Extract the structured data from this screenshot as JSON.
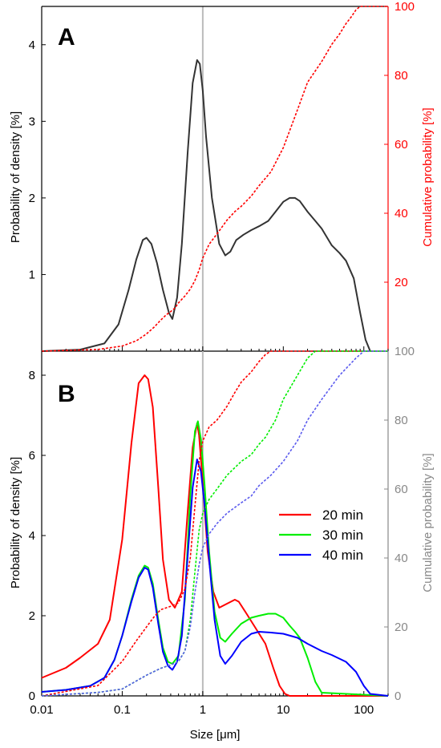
{
  "chart_data": [
    {
      "panel": "A",
      "type": "line",
      "xscale": "log",
      "xlim": [
        0.01,
        200
      ],
      "ylim": [
        0,
        4.5
      ],
      "y2lim": [
        0,
        100
      ],
      "ylabel": "Probability of density [%]",
      "y2label": "Cumulative probability [%]",
      "yticks": [
        1,
        2,
        3,
        4
      ],
      "y2ticks": [
        20,
        40,
        60,
        80,
        100
      ],
      "vline_x": 1,
      "colors": {
        "density": "#333333",
        "cumulative": "#ff0000",
        "right_axis": "#ff0000",
        "vline": "#bbbbbb"
      },
      "series": [
        {
          "kind": "density",
          "x": [
            0.01,
            0.03,
            0.06,
            0.09,
            0.12,
            0.15,
            0.18,
            0.2,
            0.23,
            0.27,
            0.32,
            0.38,
            0.42,
            0.48,
            0.55,
            0.65,
            0.75,
            0.85,
            0.92,
            1.0,
            1.1,
            1.3,
            1.6,
            1.9,
            2.2,
            2.6,
            3.2,
            4,
            5,
            6.5,
            8,
            10,
            12,
            14,
            16,
            20,
            25,
            30,
            40,
            50,
            60,
            75,
            90,
            105,
            120
          ],
          "y": [
            0.0,
            0.02,
            0.1,
            0.35,
            0.8,
            1.2,
            1.45,
            1.48,
            1.4,
            1.15,
            0.8,
            0.5,
            0.42,
            0.7,
            1.4,
            2.6,
            3.5,
            3.8,
            3.75,
            3.4,
            2.8,
            2.0,
            1.4,
            1.25,
            1.3,
            1.45,
            1.52,
            1.58,
            1.63,
            1.7,
            1.82,
            1.95,
            2.0,
            2.0,
            1.96,
            1.82,
            1.7,
            1.6,
            1.38,
            1.28,
            1.18,
            0.95,
            0.5,
            0.15,
            0.0
          ]
        },
        {
          "kind": "cumulative",
          "x": [
            0.01,
            0.05,
            0.1,
            0.15,
            0.2,
            0.25,
            0.3,
            0.35,
            0.4,
            0.45,
            0.5,
            0.6,
            0.7,
            0.8,
            0.9,
            1.0,
            1.2,
            1.5,
            2,
            2.5,
            3,
            4,
            5,
            7,
            10,
            15,
            20,
            30,
            40,
            50,
            60,
            70,
            80,
            90,
            100,
            200
          ],
          "y": [
            0,
            0.5,
            1.5,
            3,
            5,
            7,
            9,
            10.5,
            11.5,
            12.5,
            14,
            16,
            18,
            20.5,
            23.5,
            27,
            31,
            34,
            38,
            40.5,
            42,
            45,
            48,
            52,
            59,
            70,
            78,
            84,
            89,
            92,
            95,
            97,
            99,
            100,
            100,
            100
          ]
        }
      ]
    },
    {
      "panel": "B",
      "type": "line",
      "xscale": "log",
      "xlim": [
        0.01,
        200
      ],
      "ylim": [
        0,
        8.6
      ],
      "y2lim": [
        0,
        100
      ],
      "xlabel": "Size [μm]",
      "ylabel": "Probability of density [%]",
      "y2label": "Cumulative probability [%]",
      "xticks": [
        0.01,
        0.1,
        1,
        10,
        100
      ],
      "xticklabels": [
        "0.01",
        "0.1",
        "1",
        "10",
        "100"
      ],
      "yticks": [
        0,
        2,
        4,
        6,
        8
      ],
      "y2ticks": [
        0,
        20,
        40,
        60,
        80,
        100
      ],
      "vline_x": 1,
      "legend_position": "center-right",
      "colors": {
        "right_axis": "#888888",
        "vline": "#bbbbbb"
      },
      "series": [
        {
          "name": "20 min",
          "color": "#ff0000",
          "x": [
            0.01,
            0.02,
            0.03,
            0.05,
            0.07,
            0.1,
            0.13,
            0.16,
            0.19,
            0.21,
            0.24,
            0.28,
            0.32,
            0.38,
            0.45,
            0.55,
            0.65,
            0.75,
            0.85,
            0.9,
            1.0,
            1.15,
            1.35,
            1.6,
            2.0,
            2.5,
            2.8,
            3.5,
            4.5,
            6,
            7.5,
            9,
            10.5,
            12,
            15,
            20,
            30,
            200
          ],
          "y": [
            0.45,
            0.7,
            0.95,
            1.3,
            1.9,
            3.9,
            6.3,
            7.8,
            8.0,
            7.9,
            7.2,
            5.2,
            3.4,
            2.4,
            2.2,
            2.6,
            4.6,
            6.2,
            6.8,
            6.5,
            5.3,
            3.6,
            2.6,
            2.2,
            2.3,
            2.4,
            2.35,
            2.05,
            1.7,
            1.3,
            0.7,
            0.25,
            0.05,
            0.0,
            0.0,
            0.0,
            0.0,
            0.0
          ]
        },
        {
          "name": "30 min",
          "color": "#00ee00",
          "x": [
            0.01,
            0.02,
            0.04,
            0.06,
            0.08,
            0.1,
            0.13,
            0.16,
            0.19,
            0.21,
            0.24,
            0.28,
            0.32,
            0.37,
            0.42,
            0.5,
            0.6,
            0.7,
            0.8,
            0.87,
            0.95,
            1.05,
            1.2,
            1.4,
            1.65,
            1.9,
            2.3,
            3,
            4,
            5,
            6.5,
            8,
            10,
            12,
            14,
            16,
            20,
            25,
            30,
            200
          ],
          "y": [
            0.1,
            0.15,
            0.25,
            0.45,
            0.9,
            1.5,
            2.4,
            3.0,
            3.25,
            3.2,
            2.8,
            1.9,
            1.2,
            0.85,
            0.8,
            1.0,
            2.4,
            5.0,
            6.6,
            6.85,
            6.4,
            5.3,
            3.6,
            2.1,
            1.45,
            1.35,
            1.55,
            1.8,
            1.95,
            2.0,
            2.05,
            2.05,
            1.95,
            1.75,
            1.6,
            1.45,
            0.95,
            0.35,
            0.08,
            0.0
          ]
        },
        {
          "name": "40 min",
          "color": "#0000ff",
          "x": [
            0.01,
            0.02,
            0.04,
            0.06,
            0.08,
            0.1,
            0.13,
            0.16,
            0.19,
            0.21,
            0.24,
            0.28,
            0.32,
            0.37,
            0.42,
            0.48,
            0.55,
            0.65,
            0.75,
            0.85,
            0.95,
            1.05,
            1.2,
            1.4,
            1.65,
            1.9,
            2.3,
            3,
            4,
            5,
            7,
            10,
            15,
            20,
            30,
            40,
            60,
            80,
            100,
            120,
            200
          ],
          "y": [
            0.1,
            0.15,
            0.25,
            0.45,
            0.9,
            1.5,
            2.35,
            2.95,
            3.2,
            3.15,
            2.7,
            1.8,
            1.1,
            0.75,
            0.65,
            0.85,
            1.5,
            3.5,
            5.2,
            5.9,
            5.6,
            4.8,
            3.4,
            1.9,
            1.0,
            0.8,
            1.0,
            1.35,
            1.55,
            1.6,
            1.58,
            1.55,
            1.45,
            1.3,
            1.12,
            1.02,
            0.85,
            0.6,
            0.25,
            0.05,
            0.0
          ]
        },
        {
          "legend_of": "20 min",
          "kind": "cumulative",
          "color": "#ff0000",
          "x": [
            0.01,
            0.05,
            0.1,
            0.15,
            0.2,
            0.25,
            0.3,
            0.4,
            0.5,
            0.6,
            0.7,
            0.8,
            0.9,
            1.0,
            1.2,
            1.5,
            2,
            2.5,
            3,
            4,
            5,
            6,
            7,
            8,
            10,
            200
          ],
          "y": [
            0,
            3,
            10,
            16,
            20,
            23,
            25,
            26,
            27,
            31,
            40,
            55,
            68,
            74,
            78,
            80,
            84,
            88,
            91,
            94,
            97,
            99,
            100,
            100,
            100,
            100
          ]
        },
        {
          "legend_of": "30 min",
          "kind": "cumulative",
          "color": "#00ee00",
          "x": [
            0.01,
            0.05,
            0.1,
            0.2,
            0.3,
            0.4,
            0.5,
            0.6,
            0.7,
            0.8,
            0.9,
            1.0,
            1.2,
            1.5,
            2,
            3,
            4,
            5,
            6,
            8,
            10,
            15,
            20,
            25,
            200
          ],
          "y": [
            0,
            1,
            2,
            6,
            8,
            9,
            10,
            13,
            22,
            36,
            48,
            53,
            57,
            60,
            64,
            68,
            70,
            73,
            75,
            80,
            86,
            93,
            98,
            100,
            100
          ]
        },
        {
          "legend_of": "40 min",
          "kind": "cumulative",
          "color": "#5a5aee",
          "x": [
            0.01,
            0.05,
            0.1,
            0.2,
            0.3,
            0.4,
            0.5,
            0.6,
            0.7,
            0.8,
            0.9,
            1.0,
            1.2,
            1.5,
            2,
            3,
            4,
            5,
            7,
            10,
            15,
            20,
            30,
            50,
            80,
            100,
            200
          ],
          "y": [
            0,
            1,
            2,
            6,
            8,
            9,
            10,
            13,
            20,
            30,
            38,
            43,
            47,
            50,
            53,
            56,
            58,
            61,
            64,
            68,
            74,
            80,
            86,
            93,
            98,
            100,
            100
          ]
        }
      ]
    }
  ]
}
